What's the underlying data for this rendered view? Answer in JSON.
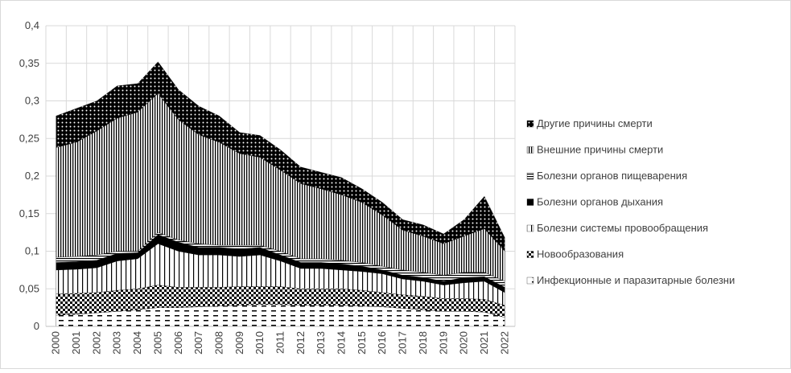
{
  "chart_data": {
    "type": "stacked_area",
    "categories": [
      "2000",
      "2001",
      "2002",
      "2003",
      "2004",
      "2005",
      "2006",
      "2007",
      "2008",
      "2009",
      "2010",
      "2011",
      "2012",
      "2013",
      "2014",
      "2015",
      "2016",
      "2017",
      "2018",
      "2019",
      "2020",
      "2021",
      "2022"
    ],
    "series": [
      {
        "name": "Инфекционные и паразитарные болезни",
        "color": "#000000",
        "values": [
          0.015,
          0.016,
          0.018,
          0.02,
          0.022,
          0.025,
          0.025,
          0.026,
          0.027,
          0.028,
          0.029,
          0.029,
          0.028,
          0.028,
          0.028,
          0.027,
          0.026,
          0.024,
          0.022,
          0.02,
          0.02,
          0.019,
          0.012
        ]
      },
      {
        "name": "Новообразования",
        "color": "#000000",
        "values": [
          0.028,
          0.028,
          0.027,
          0.028,
          0.028,
          0.03,
          0.027,
          0.026,
          0.025,
          0.025,
          0.024,
          0.024,
          0.022,
          0.022,
          0.022,
          0.021,
          0.019,
          0.018,
          0.018,
          0.017,
          0.017,
          0.017,
          0.016
        ]
      },
      {
        "name": "Болезни системы провообращения",
        "color": "#000000",
        "values": [
          0.032,
          0.032,
          0.033,
          0.039,
          0.04,
          0.055,
          0.048,
          0.043,
          0.043,
          0.04,
          0.042,
          0.034,
          0.027,
          0.027,
          0.025,
          0.025,
          0.025,
          0.021,
          0.02,
          0.018,
          0.021,
          0.024,
          0.017
        ]
      },
      {
        "name": "Болезни органов дыхания",
        "color": "#000000",
        "values": [
          0.01,
          0.01,
          0.01,
          0.01,
          0.008,
          0.012,
          0.012,
          0.01,
          0.01,
          0.01,
          0.01,
          0.008,
          0.008,
          0.008,
          0.008,
          0.007,
          0.005,
          0.005,
          0.005,
          0.005,
          0.007,
          0.006,
          0.007
        ]
      },
      {
        "name": "Болезни органов пищеварения",
        "color": "#000000",
        "values": [
          0.007,
          0.007,
          0.007,
          0.003,
          0.002,
          0.003,
          0.003,
          0.005,
          0.003,
          0.005,
          0.003,
          0.005,
          0.005,
          0.005,
          0.005,
          0.005,
          0.005,
          0.007,
          0.007,
          0.008,
          0.007,
          0.006,
          0.008
        ]
      },
      {
        "name": "Внешние причины смерти",
        "color": "#000000",
        "values": [
          0.146,
          0.152,
          0.165,
          0.177,
          0.185,
          0.185,
          0.16,
          0.145,
          0.137,
          0.122,
          0.117,
          0.108,
          0.1,
          0.093,
          0.087,
          0.08,
          0.068,
          0.053,
          0.048,
          0.042,
          0.048,
          0.058,
          0.04
        ]
      },
      {
        "name": "Другие причины смерти",
        "color": "#000000",
        "values": [
          0.042,
          0.045,
          0.04,
          0.043,
          0.038,
          0.042,
          0.04,
          0.038,
          0.035,
          0.028,
          0.029,
          0.027,
          0.022,
          0.022,
          0.023,
          0.018,
          0.017,
          0.014,
          0.015,
          0.013,
          0.022,
          0.043,
          0.018
        ]
      }
    ],
    "ylim": [
      0,
      0.4
    ],
    "yticks": [
      0,
      {
        "value": 0.05,
        "label": "0,05"
      },
      {
        "value": 0.1,
        "label": "0,1"
      },
      {
        "value": 0.15,
        "label": "0,15"
      },
      {
        "value": 0.2,
        "label": "0,2"
      },
      {
        "value": 0.25,
        "label": "0,25"
      },
      {
        "value": 0.3,
        "label": "0,3"
      },
      {
        "value": 0.35,
        "label": "0,35"
      },
      {
        "value": 0.4,
        "label": "0,4"
      }
    ],
    "grid": true,
    "legend": "right"
  }
}
